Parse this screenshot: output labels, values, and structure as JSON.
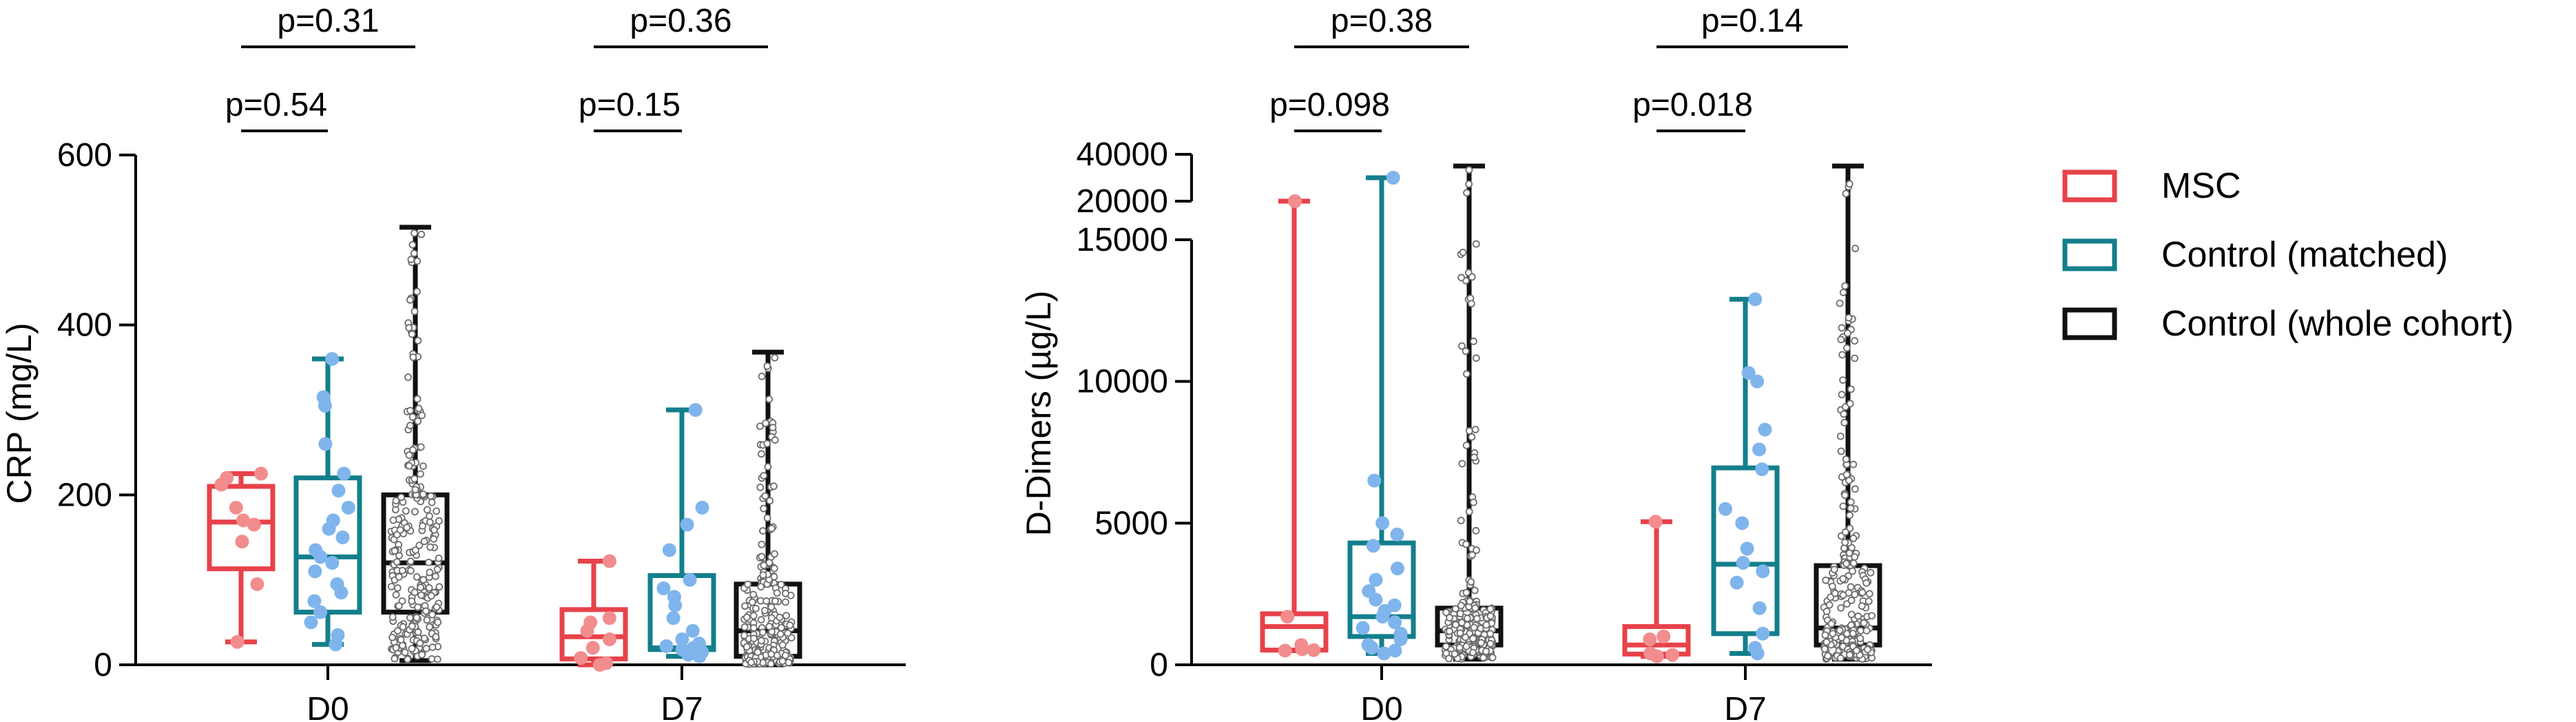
{
  "colors": {
    "msc": "#e8424a",
    "matched": "#137f8c",
    "cohort": "#111111",
    "msc_point": "#f28d8e",
    "matched_point": "#7fb5ec"
  },
  "legend": [
    {
      "label": "MSC",
      "color": "#e8424a"
    },
    {
      "label": "Control (matched)",
      "color": "#137f8c"
    },
    {
      "label": "Control (whole cohort)",
      "color": "#111111"
    }
  ],
  "chart_data": [
    {
      "type": "box",
      "ylabel": "CRP (mg/L)",
      "categories": [
        "D0",
        "D7"
      ],
      "ylim": [
        0,
        600
      ],
      "yticks": [
        "0",
        "200",
        "400",
        "600"
      ],
      "series": [
        {
          "name": "MSC",
          "boxes": [
            {
              "min": 27,
              "q1": 113,
              "median": 168,
              "q3": 210,
              "max": 225,
              "points": [
                27,
                95,
                145,
                165,
                170,
                185,
                212,
                220,
                225
              ]
            },
            {
              "min": 0,
              "q1": 7,
              "median": 33,
              "q3": 65,
              "max": 122,
              "points": [
                0,
                2,
                8,
                20,
                30,
                40,
                50,
                55,
                122
              ]
            }
          ]
        },
        {
          "name": "Control (matched)",
          "boxes": [
            {
              "min": 24,
              "q1": 62,
              "median": 127,
              "q3": 220,
              "max": 360,
              "points": [
                24,
                35,
                50,
                62,
                75,
                85,
                95,
                110,
                120,
                127,
                135,
                150,
                160,
                170,
                185,
                205,
                225,
                260,
                305,
                315,
                360
              ]
            },
            {
              "min": 10,
              "q1": 18,
              "median": 20,
              "q3": 105,
              "max": 300,
              "points": [
                10,
                12,
                14,
                15,
                18,
                20,
                22,
                25,
                30,
                40,
                55,
                70,
                80,
                90,
                100,
                135,
                165,
                185,
                300
              ]
            }
          ]
        },
        {
          "name": "Control (whole cohort)",
          "boxes": [
            {
              "min": 5,
              "q1": 62,
              "median": 120,
              "q3": 200,
              "max": 515
            },
            {
              "min": 0,
              "q1": 10,
              "median": 40,
              "q3": 95,
              "max": 368
            }
          ]
        }
      ],
      "annotations": [
        {
          "text": "p=0.31",
          "group": "D0",
          "span": "MSC-Control (whole cohort)"
        },
        {
          "text": "p=0.54",
          "group": "D0",
          "span": "MSC-Control (matched)"
        },
        {
          "text": "p=0.36",
          "group": "D7",
          "span": "MSC-Control (whole cohort)"
        },
        {
          "text": "p=0.15",
          "group": "D7",
          "span": "MSC-Control (matched)"
        }
      ]
    },
    {
      "type": "box",
      "ylabel": "D-Dimers (µg/L)",
      "categories": [
        "D0",
        "D7"
      ],
      "ylim": [
        0,
        40000
      ],
      "axis_break": [
        15000,
        20000
      ],
      "yticks": [
        "0",
        "5000",
        "10000",
        "15000",
        "20000",
        "40000"
      ],
      "series": [
        {
          "name": "MSC",
          "boxes": [
            {
              "min": 500,
              "q1": 520,
              "median": 1350,
              "q3": 1800,
              "max": 20000,
              "points": [
                500,
                520,
                550,
                700,
                1700,
                20000
              ]
            },
            {
              "min": 300,
              "q1": 380,
              "median": 700,
              "q3": 1350,
              "max": 5050,
              "points": [
                300,
                350,
                400,
                900,
                1000,
                5050
              ]
            }
          ]
        },
        {
          "name": "Control (matched)",
          "boxes": [
            {
              "min": 400,
              "q1": 1000,
              "median": 1700,
              "q3": 4300,
              "max": 30000,
              "points": [
                400,
                500,
                600,
                700,
                900,
                1100,
                1300,
                1500,
                1700,
                1900,
                2100,
                2300,
                2600,
                3000,
                3400,
                4200,
                4600,
                5000,
                6500,
                30000
              ]
            },
            {
              "min": 400,
              "q1": 1100,
              "median": 3550,
              "q3": 6950,
              "max": 12900,
              "points": [
                400,
                600,
                1100,
                2000,
                2900,
                3300,
                3600,
                4100,
                5000,
                5500,
                6900,
                7600,
                8300,
                10000,
                10300,
                12900
              ]
            }
          ]
        },
        {
          "name": "Control (whole cohort)",
          "boxes": [
            {
              "min": 200,
              "q1": 700,
              "median": 1200,
              "q3": 2000,
              "max": 35000
            },
            {
              "min": 200,
              "q1": 700,
              "median": 1300,
              "q3": 3500,
              "max": 35000
            }
          ]
        }
      ],
      "annotations": [
        {
          "text": "p=0.38",
          "group": "D0",
          "span": "MSC-Control (whole cohort)"
        },
        {
          "text": "p=0.098",
          "group": "D0",
          "span": "MSC-Control (matched)"
        },
        {
          "text": "p=0.14",
          "group": "D7",
          "span": "MSC-Control (whole cohort)"
        },
        {
          "text": "p=0.018",
          "group": "D7",
          "span": "MSC-Control (matched)"
        }
      ]
    }
  ]
}
